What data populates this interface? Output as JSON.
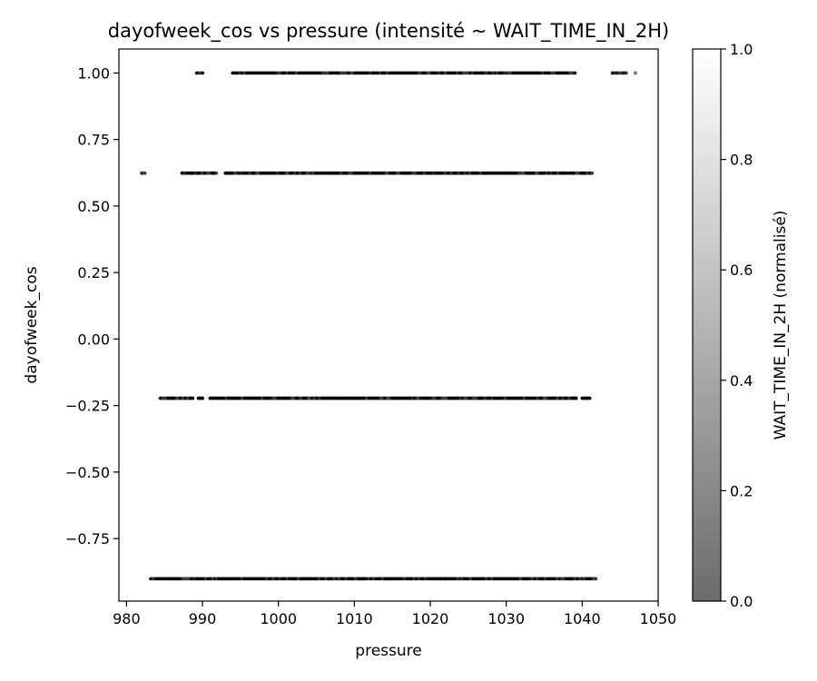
{
  "chart_data": {
    "type": "scatter",
    "title": "dayofweek_cos vs pressure (intensité ~ WAIT_TIME_IN_2H)",
    "xlabel": "pressure",
    "ylabel": "dayofweek_cos",
    "xlim": [
      979,
      1050
    ],
    "ylim": [
      -0.985,
      1.09
    ],
    "xticks": [
      980,
      990,
      1000,
      1010,
      1020,
      1030,
      1040,
      1050
    ],
    "xtick_labels": [
      "980",
      "990",
      "1000",
      "1010",
      "1020",
      "1030",
      "1040",
      "1050"
    ],
    "yticks": [
      1.0,
      0.75,
      0.5,
      0.25,
      0.0,
      -0.25,
      -0.5,
      -0.75
    ],
    "ytick_labels": [
      "1.00",
      "0.75",
      "0.50",
      "0.25",
      "0.00",
      "−0.25",
      "−0.50",
      "−0.75"
    ],
    "grid": false,
    "colormap": "grey, alpha 0.6 (0 = dark grey #6b6b6b, 1 = white)",
    "colorbar": {
      "label": "WAIT_TIME_IN_2H (normalisé)",
      "range": [
        0.0,
        1.0
      ],
      "ticks": [
        0.0,
        0.2,
        0.4,
        0.6,
        0.8,
        1.0
      ],
      "tick_labels": [
        "0.0",
        "0.2",
        "0.4",
        "0.6",
        "0.8",
        "1.0"
      ]
    },
    "bands": [
      {
        "y": 1.0,
        "segments": [
          [
            989.3,
            990.0
          ],
          [
            994.0,
            1039.0
          ],
          [
            1044.0,
            1045.8
          ]
        ],
        "isolated": [
          1047.0
        ],
        "intensity": 0.02
      },
      {
        "y": 0.6235,
        "segments": [
          [
            982.0,
            982.4
          ],
          [
            987.3,
            991.8
          ],
          [
            993.0,
            1038.0
          ],
          [
            1038.3,
            1041.3
          ]
        ],
        "isolated": [],
        "intensity": 0.02
      },
      {
        "y": -0.2225,
        "segments": [
          [
            984.5,
            988.7
          ],
          [
            989.5,
            990.0
          ],
          [
            991.0,
            1039.2
          ],
          [
            1040.0,
            1041.0
          ]
        ],
        "isolated": [],
        "intensity": 0.02
      },
      {
        "y": -0.901,
        "segments": [
          [
            983.2,
            1041.8
          ]
        ],
        "isolated": [],
        "intensity": 0.02
      }
    ]
  }
}
